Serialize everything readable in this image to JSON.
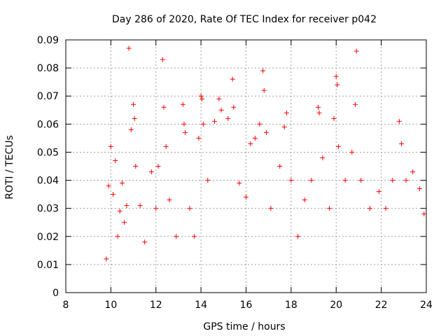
{
  "chart_data": {
    "type": "scatter",
    "title": "Day 286 of 2020, Rate Of TEC Index for receiver p042",
    "xlabel": "GPS time / hours",
    "ylabel": "ROTI / TECUs",
    "xlim": [
      8,
      24
    ],
    "ylim": [
      0,
      0.09
    ],
    "xticks": [
      "8",
      "10",
      "12",
      "14",
      "16",
      "18",
      "20",
      "22",
      "24"
    ],
    "yticks": [
      "0",
      "0.01",
      "0.02",
      "0.03",
      "0.04",
      "0.05",
      "0.06",
      "0.07",
      "0.08",
      "0.09"
    ],
    "grid": true,
    "marker": "plus",
    "color": "#ff0000",
    "series": [
      {
        "name": "ROTI",
        "points": [
          [
            9.8,
            0.012
          ],
          [
            9.9,
            0.038
          ],
          [
            10.0,
            0.052
          ],
          [
            10.1,
            0.035
          ],
          [
            10.2,
            0.047
          ],
          [
            10.3,
            0.02
          ],
          [
            10.4,
            0.029
          ],
          [
            10.5,
            0.039
          ],
          [
            10.6,
            0.025
          ],
          [
            10.7,
            0.031
          ],
          [
            10.8,
            0.087
          ],
          [
            10.9,
            0.058
          ],
          [
            11.0,
            0.067
          ],
          [
            11.05,
            0.062
          ],
          [
            11.1,
            0.045
          ],
          [
            11.3,
            0.031
          ],
          [
            11.5,
            0.018
          ],
          [
            11.8,
            0.043
          ],
          [
            12.0,
            0.03
          ],
          [
            12.1,
            0.045
          ],
          [
            12.3,
            0.083
          ],
          [
            12.35,
            0.066
          ],
          [
            12.45,
            0.052
          ],
          [
            12.6,
            0.033
          ],
          [
            12.9,
            0.02
          ],
          [
            13.2,
            0.067
          ],
          [
            13.25,
            0.06
          ],
          [
            13.3,
            0.057
          ],
          [
            13.5,
            0.03
          ],
          [
            13.7,
            0.02
          ],
          [
            13.9,
            0.055
          ],
          [
            14.0,
            0.07
          ],
          [
            14.05,
            0.069
          ],
          [
            14.1,
            0.06
          ],
          [
            14.3,
            0.04
          ],
          [
            14.6,
            0.061
          ],
          [
            14.8,
            0.069
          ],
          [
            14.9,
            0.065
          ],
          [
            15.2,
            0.062
          ],
          [
            15.4,
            0.076
          ],
          [
            15.45,
            0.066
          ],
          [
            15.7,
            0.039
          ],
          [
            16.0,
            0.034
          ],
          [
            16.2,
            0.053
          ],
          [
            16.4,
            0.055
          ],
          [
            16.6,
            0.06
          ],
          [
            16.75,
            0.079
          ],
          [
            16.8,
            0.072
          ],
          [
            16.9,
            0.057
          ],
          [
            17.1,
            0.03
          ],
          [
            17.5,
            0.045
          ],
          [
            17.7,
            0.059
          ],
          [
            17.8,
            0.064
          ],
          [
            18.0,
            0.04
          ],
          [
            18.3,
            0.02
          ],
          [
            18.6,
            0.033
          ],
          [
            18.9,
            0.04
          ],
          [
            19.2,
            0.066
          ],
          [
            19.25,
            0.064
          ],
          [
            19.4,
            0.048
          ],
          [
            19.7,
            0.03
          ],
          [
            19.9,
            0.062
          ],
          [
            20.0,
            0.077
          ],
          [
            20.05,
            0.074
          ],
          [
            20.1,
            0.052
          ],
          [
            20.4,
            0.04
          ],
          [
            20.7,
            0.05
          ],
          [
            20.85,
            0.067
          ],
          [
            20.9,
            0.086
          ],
          [
            21.1,
            0.04
          ],
          [
            21.5,
            0.03
          ],
          [
            21.9,
            0.036
          ],
          [
            22.2,
            0.03
          ],
          [
            22.5,
            0.04
          ],
          [
            22.8,
            0.061
          ],
          [
            22.9,
            0.053
          ],
          [
            23.1,
            0.04
          ],
          [
            23.4,
            0.043
          ],
          [
            23.7,
            0.037
          ],
          [
            23.9,
            0.028
          ]
        ]
      }
    ]
  }
}
